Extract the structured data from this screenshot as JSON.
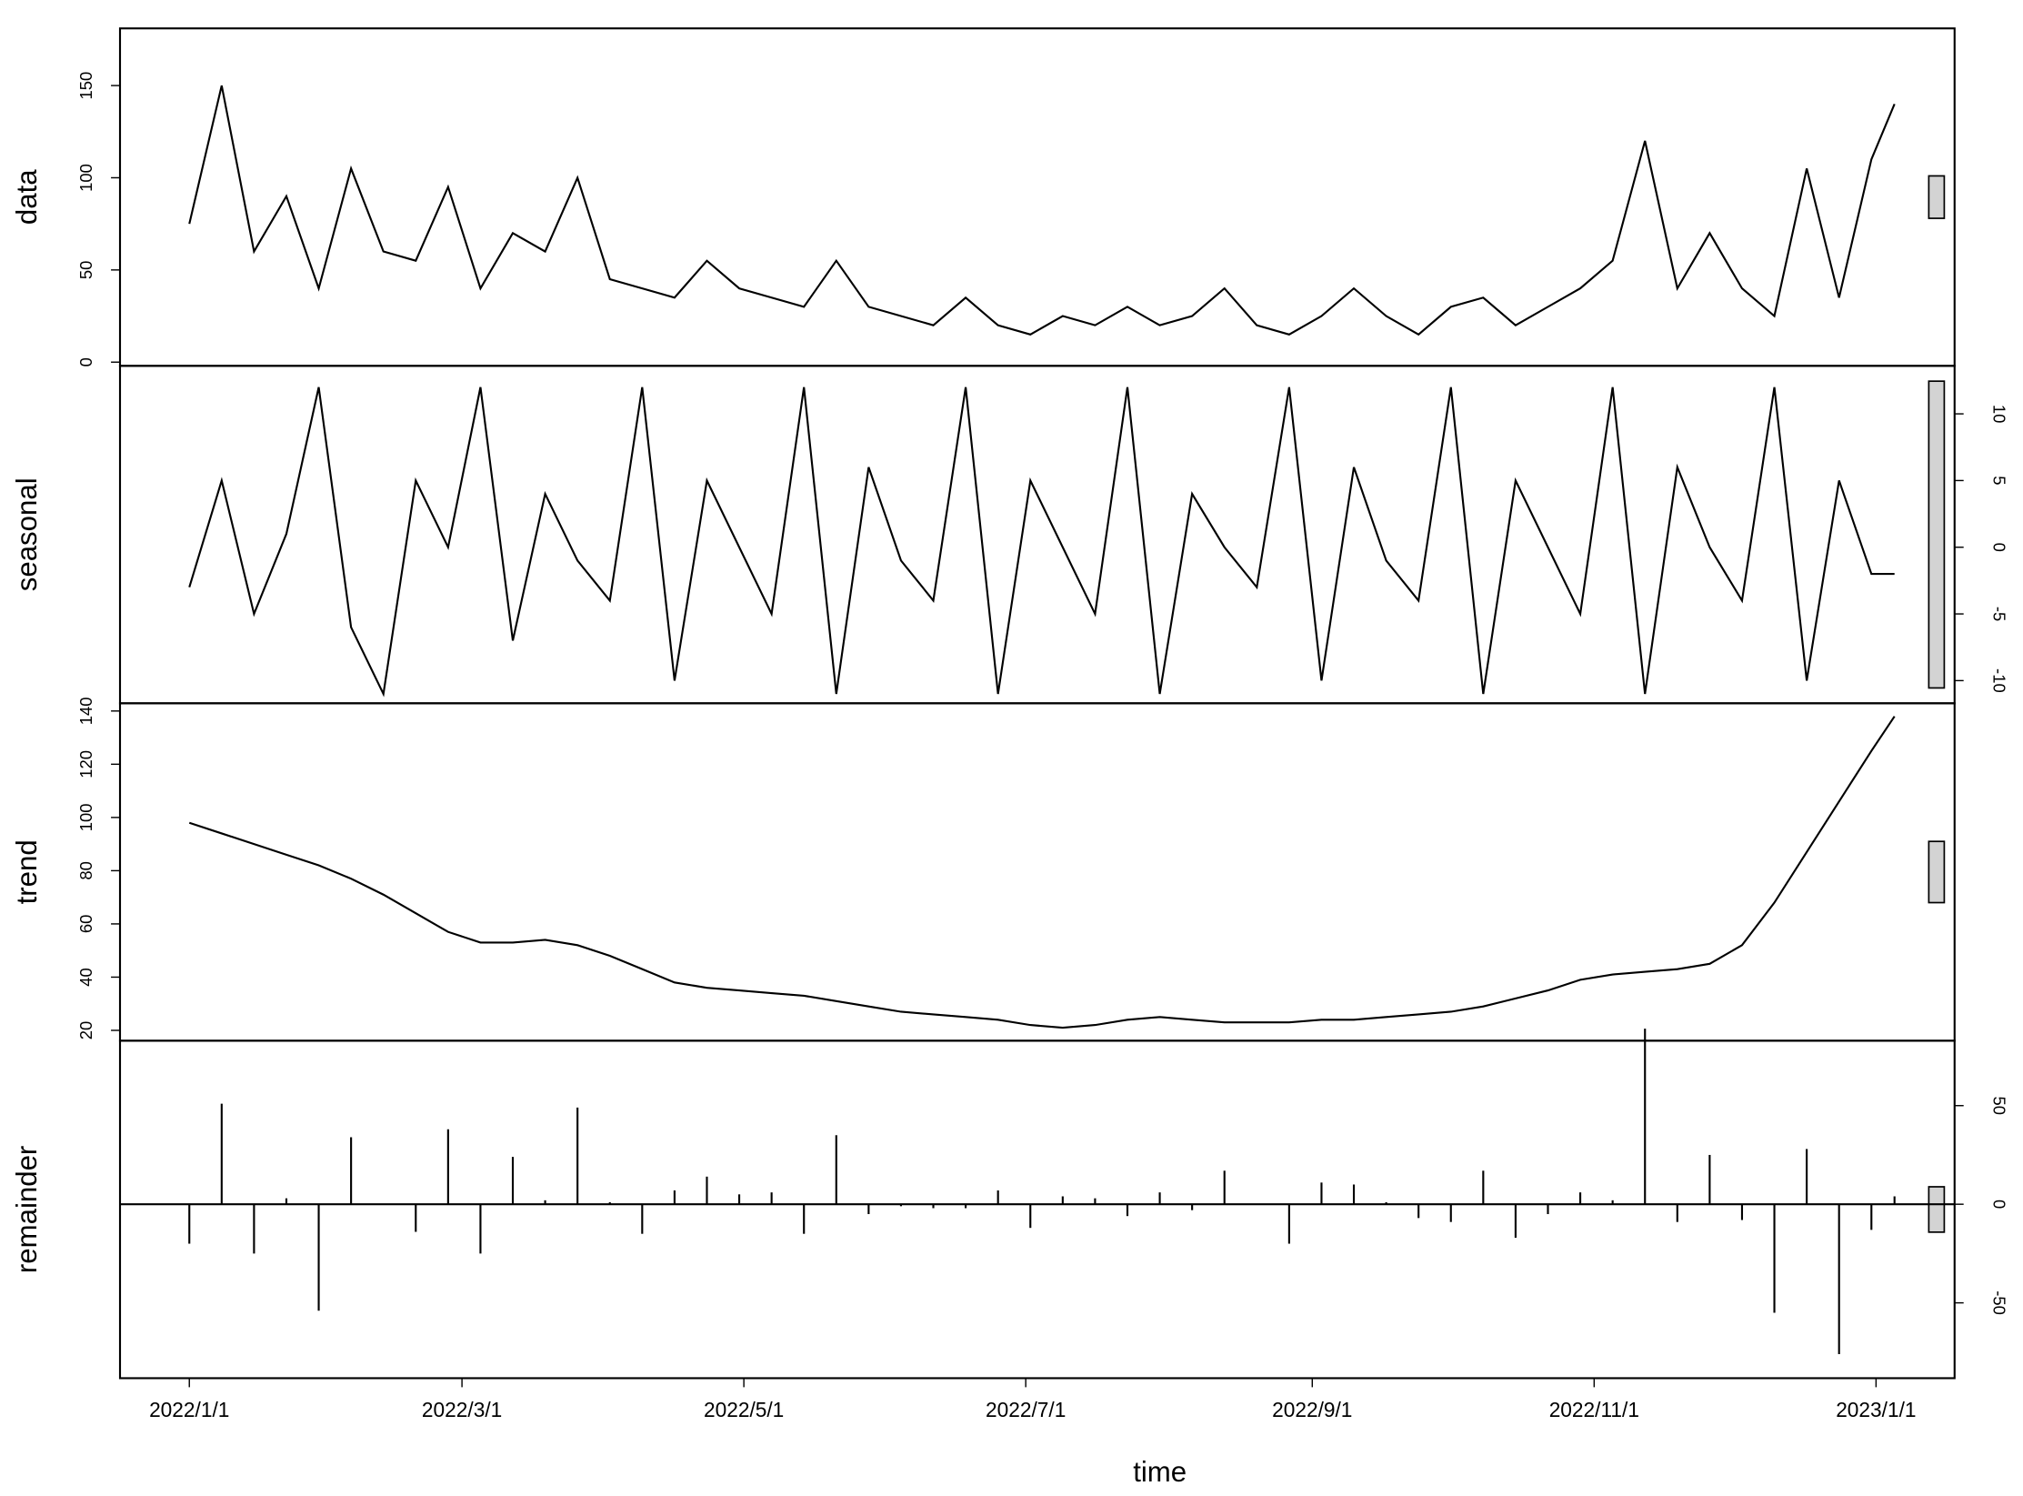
{
  "chart_data": [
    {
      "type": "line",
      "ylabel": "data",
      "ylim": [
        -2,
        181
      ],
      "yticks": [
        0,
        50,
        100,
        150
      ],
      "axis_side": "left",
      "color": "#000000",
      "values": [
        75,
        150,
        60,
        90,
        40,
        105,
        60,
        55,
        95,
        40,
        70,
        60,
        100,
        45,
        40,
        35,
        55,
        40,
        35,
        30,
        55,
        30,
        25,
        20,
        35,
        20,
        15,
        25,
        20,
        30,
        20,
        25,
        40,
        20,
        15,
        25,
        40,
        25,
        15,
        30,
        35,
        20,
        30,
        40,
        55,
        120,
        40,
        70,
        40,
        25,
        105,
        35,
        110,
        140
      ]
    },
    {
      "type": "line",
      "ylabel": "seasonal",
      "ylim": [
        -11.7,
        13.6
      ],
      "yticks": [
        -10,
        -5,
        0,
        5,
        10
      ],
      "axis_side": "right",
      "color": "#000000",
      "values": [
        -3,
        5,
        -5,
        1,
        12,
        -6,
        -11,
        5,
        0,
        12,
        -7,
        4,
        -1,
        -4,
        12,
        -10,
        5,
        0,
        -5,
        12,
        -11,
        6,
        -1,
        -4,
        12,
        -11,
        5,
        0,
        -5,
        12,
        -11,
        4,
        0,
        -3,
        12,
        -10,
        6,
        -1,
        -4,
        12,
        -11,
        5,
        0,
        -5,
        12,
        -11,
        6,
        0,
        -4,
        12,
        -10,
        5,
        -2,
        -2
      ]
    },
    {
      "type": "line",
      "ylabel": "trend",
      "ylim": [
        16.1,
        142.9
      ],
      "yticks": [
        20,
        40,
        60,
        80,
        100,
        120,
        140
      ],
      "axis_side": "left",
      "color": "#000000",
      "values": [
        98,
        94,
        90,
        86,
        82,
        77,
        71,
        64,
        57,
        53,
        53,
        54,
        52,
        48,
        43,
        38,
        36,
        35,
        34,
        33,
        31,
        29,
        27,
        26,
        25,
        24,
        22,
        21,
        22,
        24,
        25,
        24,
        23,
        23,
        23,
        24,
        24,
        25,
        26,
        27,
        29,
        32,
        35,
        39,
        41,
        42,
        43,
        45,
        52,
        68,
        87,
        106,
        125,
        138
      ]
    },
    {
      "type": "bar",
      "ylabel": "remainder",
      "ylim": [
        -88.2,
        82.9
      ],
      "yticks": [
        -50,
        0,
        50
      ],
      "axis_side": "right",
      "color": "#000000",
      "values": [
        -20,
        51,
        -25,
        3,
        -54,
        34,
        0,
        -14,
        38,
        -25,
        24,
        2,
        49,
        1,
        -15,
        7,
        14,
        5,
        6,
        -15,
        35,
        -5,
        -1,
        -2,
        -2,
        7,
        -12,
        4,
        3,
        -6,
        6,
        -3,
        17,
        0,
        -20,
        11,
        10,
        1,
        -7,
        -9,
        17,
        -17,
        -5,
        6,
        2,
        89,
        -9,
        25,
        -8,
        -55,
        28,
        -76,
        -13,
        4
      ],
      "xlabel": "time",
      "xlim": [
        "2021/12/17",
        "2023/1/18"
      ],
      "xticks": [
        "2022/1/1",
        "2022/3/1",
        "2022/5/1",
        "2022/7/1",
        "2022/9/1",
        "2022/11/1",
        "2023/1/1"
      ],
      "x": [
        "2022/1/1",
        "2022/1/8",
        "2022/1/15",
        "2022/1/22",
        "2022/1/29",
        "2022/2/5",
        "2022/2/12",
        "2022/2/19",
        "2022/2/26",
        "2022/3/5",
        "2022/3/12",
        "2022/3/19",
        "2022/3/26",
        "2022/4/2",
        "2022/4/9",
        "2022/4/16",
        "2022/4/23",
        "2022/4/30",
        "2022/5/7",
        "2022/5/14",
        "2022/5/21",
        "2022/5/28",
        "2022/6/4",
        "2022/6/11",
        "2022/6/18",
        "2022/6/25",
        "2022/7/2",
        "2022/7/9",
        "2022/7/16",
        "2022/7/23",
        "2022/7/30",
        "2022/8/6",
        "2022/8/13",
        "2022/8/20",
        "2022/8/27",
        "2022/9/3",
        "2022/9/10",
        "2022/9/17",
        "2022/9/24",
        "2022/10/1",
        "2022/10/8",
        "2022/10/15",
        "2022/10/22",
        "2022/10/29",
        "2022/11/5",
        "2022/11/12",
        "2022/11/19",
        "2022/11/26",
        "2022/12/3",
        "2022/12/10",
        "2022/12/17",
        "2022/12/24",
        "2022/12/31",
        "2023/1/5"
      ]
    }
  ]
}
